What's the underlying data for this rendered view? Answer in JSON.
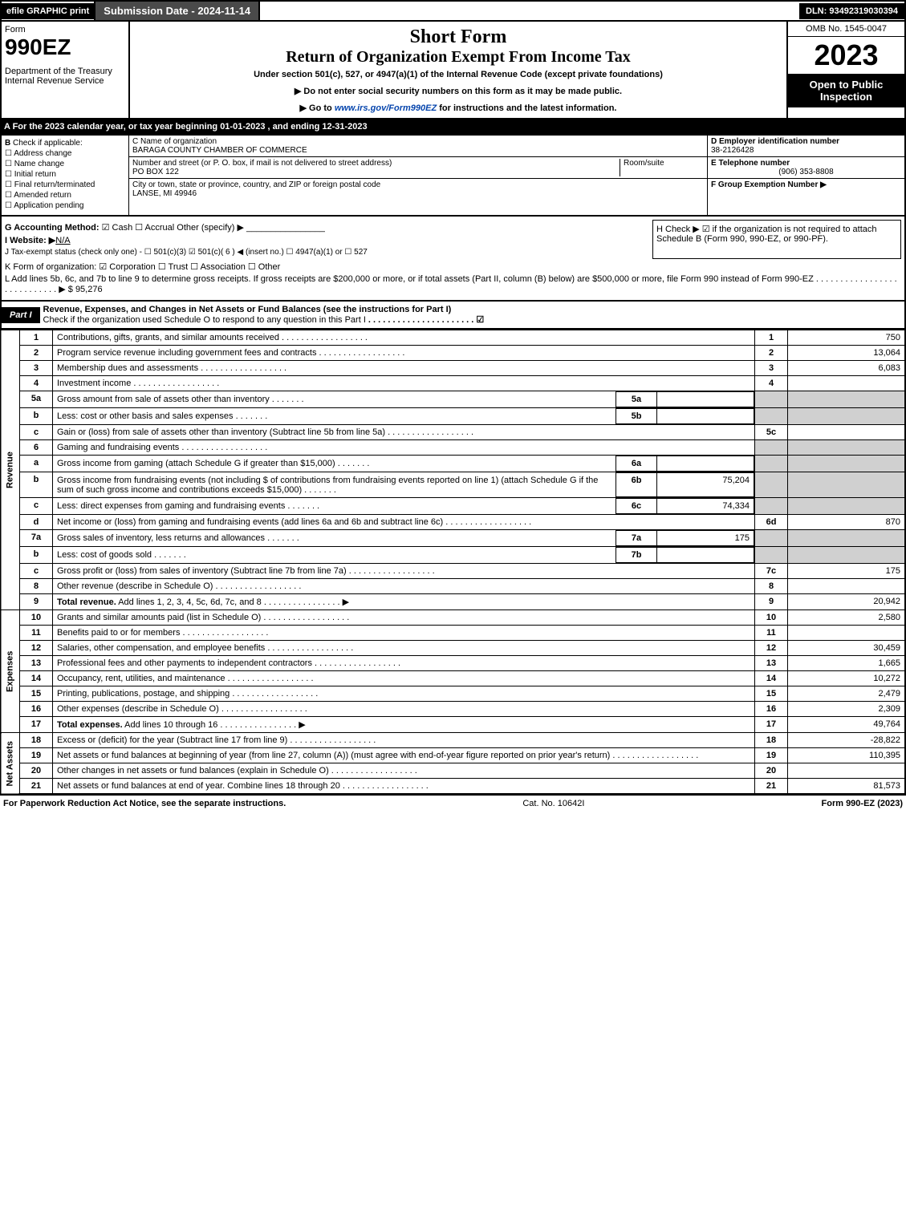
{
  "topbar": {
    "efile": "efile GRAPHIC print",
    "subdate": "Submission Date - 2024-11-14",
    "dln": "DLN: 93492319030394"
  },
  "header": {
    "form": "Form",
    "num": "990EZ",
    "dept": "Department of the Treasury\nInternal Revenue Service",
    "sf": "Short Form",
    "title": "Return of Organization Exempt From Income Tax",
    "sub": "Under section 501(c), 527, or 4947(a)(1) of the Internal Revenue Code (except private foundations)",
    "note1": "▶ Do not enter social security numbers on this form as it may be made public.",
    "note2": "▶ Go to www.irs.gov/Form990EZ for instructions and the latest information.",
    "omb": "OMB No. 1545-0047",
    "year": "2023",
    "badge": "Open to Public Inspection"
  },
  "A": {
    "text": "A  For the 2023 calendar year, or tax year beginning 01-01-2023 , and ending 12-31-2023"
  },
  "B": {
    "label": "B",
    "t": "Check if applicable:",
    "opts": [
      "Address change",
      "Name change",
      "Initial return",
      "Final return/terminated",
      "Amended return",
      "Application pending"
    ]
  },
  "C": {
    "nameLabel": "C Name of organization",
    "name": "BARAGA COUNTY CHAMBER OF COMMERCE",
    "addrLabel": "Number and street (or P. O. box, if mail is not delivered to street address)",
    "addr": "PO BOX 122",
    "room": "Room/suite",
    "cityLabel": "City or town, state or province, country, and ZIP or foreign postal code",
    "city": "LANSE, MI  49946"
  },
  "D": {
    "label": "D Employer identification number",
    "val": "38-2126428"
  },
  "E": {
    "label": "E Telephone number",
    "val": "(906) 353-8808"
  },
  "F": {
    "label": "F Group Exemption Number  ▶"
  },
  "G": {
    "text": "G Accounting Method:",
    "opts": "☑ Cash  ☐ Accrual   Other (specify) ▶"
  },
  "H": {
    "text": "H  Check ▶ ☑ if the organization is not required to attach Schedule B (Form 990, 990-EZ, or 990-PF)."
  },
  "I": {
    "text": "I Website: ▶",
    "val": "N/A"
  },
  "J": {
    "text": "J Tax-exempt status (check only one) - ☐ 501(c)(3) ☑ 501(c)( 6 ) ◀ (insert no.) ☐ 4947(a)(1) or ☐ 527"
  },
  "K": {
    "text": "K Form of organization:  ☑ Corporation  ☐ Trust  ☐ Association  ☐ Other"
  },
  "L": {
    "text": "L Add lines 5b, 6c, and 7b to line 9 to determine gross receipts. If gross receipts are $200,000 or more, or if total assets (Part II, column (B) below) are $500,000 or more, file Form 990 instead of Form 990-EZ",
    "amt": "▶ $ 95,276"
  },
  "part1": {
    "label": "Part I",
    "title": "Revenue, Expenses, and Changes in Net Assets or Fund Balances (see the instructions for Part I)",
    "check": "Check if the organization used Schedule O to respond to any question in this Part I"
  },
  "section": {
    "rev": "Revenue",
    "exp": "Expenses",
    "na": "Net Assets"
  },
  "rows": [
    {
      "n": "1",
      "d": "Contributions, gifts, grants, and similar amounts received",
      "r": "1",
      "a": "750"
    },
    {
      "n": "2",
      "d": "Program service revenue including government fees and contracts",
      "r": "2",
      "a": "13,064"
    },
    {
      "n": "3",
      "d": "Membership dues and assessments",
      "r": "3",
      "a": "6,083"
    },
    {
      "n": "4",
      "d": "Investment income",
      "r": "4",
      "a": ""
    },
    {
      "n": "5a",
      "d": "Gross amount from sale of assets other than inventory",
      "sub": "5a",
      "sa": "",
      "grey": true
    },
    {
      "n": "b",
      "d": "Less: cost or other basis and sales expenses",
      "sub": "5b",
      "sa": "",
      "grey": true
    },
    {
      "n": "c",
      "d": "Gain or (loss) from sale of assets other than inventory (Subtract line 5b from line 5a)",
      "r": "5c",
      "a": ""
    },
    {
      "n": "6",
      "d": "Gaming and fundraising events",
      "grey": true
    },
    {
      "n": "a",
      "d": "Gross income from gaming (attach Schedule G if greater than $15,000)",
      "sub": "6a",
      "sa": "",
      "grey": true
    },
    {
      "n": "b",
      "d": "Gross income from fundraising events (not including $                    of contributions from fundraising events reported on line 1) (attach Schedule G if the sum of such gross income and contributions exceeds $15,000)",
      "sub": "6b",
      "sa": "75,204",
      "grey": true
    },
    {
      "n": "c",
      "d": "Less: direct expenses from gaming and fundraising events",
      "sub": "6c",
      "sa": "74,334",
      "grey": true
    },
    {
      "n": "d",
      "d": "Net income or (loss) from gaming and fundraising events (add lines 6a and 6b and subtract line 6c)",
      "r": "6d",
      "a": "870"
    },
    {
      "n": "7a",
      "d": "Gross sales of inventory, less returns and allowances",
      "sub": "7a",
      "sa": "175",
      "grey": true
    },
    {
      "n": "b",
      "d": "Less: cost of goods sold",
      "sub": "7b",
      "sa": "",
      "grey": true
    },
    {
      "n": "c",
      "d": "Gross profit or (loss) from sales of inventory (Subtract line 7b from line 7a)",
      "r": "7c",
      "a": "175"
    },
    {
      "n": "8",
      "d": "Other revenue (describe in Schedule O)",
      "r": "8",
      "a": ""
    },
    {
      "n": "9",
      "d": "Total revenue. Add lines 1, 2, 3, 4, 5c, 6d, 7c, and 8",
      "r": "9",
      "a": "20,942",
      "b": true,
      "arrow": true
    }
  ],
  "exp": [
    {
      "n": "10",
      "d": "Grants and similar amounts paid (list in Schedule O)",
      "r": "10",
      "a": "2,580"
    },
    {
      "n": "11",
      "d": "Benefits paid to or for members",
      "r": "11",
      "a": ""
    },
    {
      "n": "12",
      "d": "Salaries, other compensation, and employee benefits",
      "r": "12",
      "a": "30,459"
    },
    {
      "n": "13",
      "d": "Professional fees and other payments to independent contractors",
      "r": "13",
      "a": "1,665"
    },
    {
      "n": "14",
      "d": "Occupancy, rent, utilities, and maintenance",
      "r": "14",
      "a": "10,272"
    },
    {
      "n": "15",
      "d": "Printing, publications, postage, and shipping",
      "r": "15",
      "a": "2,479"
    },
    {
      "n": "16",
      "d": "Other expenses (describe in Schedule O)",
      "r": "16",
      "a": "2,309"
    },
    {
      "n": "17",
      "d": "Total expenses. Add lines 10 through 16",
      "r": "17",
      "a": "49,764",
      "b": true,
      "arrow": true
    }
  ],
  "na": [
    {
      "n": "18",
      "d": "Excess or (deficit) for the year (Subtract line 17 from line 9)",
      "r": "18",
      "a": "-28,822"
    },
    {
      "n": "19",
      "d": "Net assets or fund balances at beginning of year (from line 27, column (A)) (must agree with end-of-year figure reported on prior year's return)",
      "r": "19",
      "a": "110,395"
    },
    {
      "n": "20",
      "d": "Other changes in net assets or fund balances (explain in Schedule O)",
      "r": "20",
      "a": ""
    },
    {
      "n": "21",
      "d": "Net assets or fund balances at end of year. Combine lines 18 through 20",
      "r": "21",
      "a": "81,573"
    }
  ],
  "footer": {
    "l": "For Paperwork Reduction Act Notice, see the separate instructions.",
    "c": "Cat. No. 10642I",
    "r": "Form 990-EZ (2023)"
  }
}
